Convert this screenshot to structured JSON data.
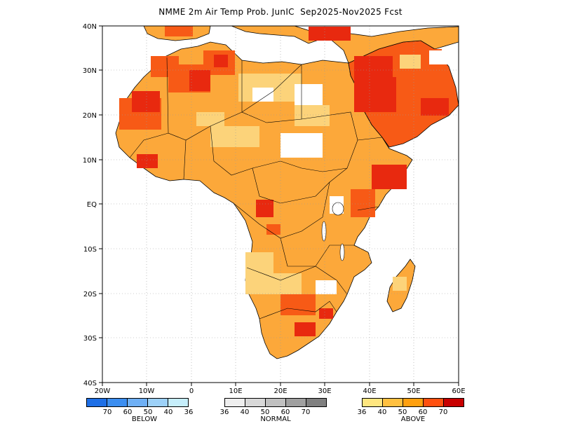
{
  "title": "NMME 2m Air Temp Prob. JunIC  Sep2025-Nov2025 Fcst",
  "axes": {
    "lat_labels": [
      "40N",
      "30N",
      "20N",
      "10N",
      "EQ",
      "10S",
      "20S",
      "30S",
      "40S"
    ],
    "lon_labels": [
      "20W",
      "10W",
      "0",
      "10E",
      "20E",
      "30E",
      "40E",
      "50E",
      "60E"
    ]
  },
  "legend": {
    "below": {
      "caption": "BELOW",
      "ticks": [
        "70",
        "60",
        "50",
        "40",
        "36"
      ],
      "colors": [
        "#1e6fe6",
        "#3c8ef0",
        "#6fb0f5",
        "#9dd1f8",
        "#c6eefb"
      ]
    },
    "normal": {
      "caption": "NORMAL",
      "ticks": [
        "36",
        "40",
        "50",
        "60",
        "70"
      ],
      "colors": [
        "#eeeeee",
        "#d8d8d8",
        "#c0c0c0",
        "#a0a0a0",
        "#808080"
      ]
    },
    "above": {
      "caption": "ABOVE",
      "ticks": [
        "36",
        "40",
        "50",
        "60",
        "70"
      ],
      "colors": [
        "#ffe680",
        "#ffc040",
        "#ffa010",
        "#ff5010",
        "#c80000"
      ]
    }
  },
  "map_colors": {
    "land_base": "#fca83a",
    "light": "#fcd37a",
    "hot": "#f75a16",
    "hottest": "#e8290f",
    "none": "#ffffff",
    "grid": "#9a9a9a"
  }
}
